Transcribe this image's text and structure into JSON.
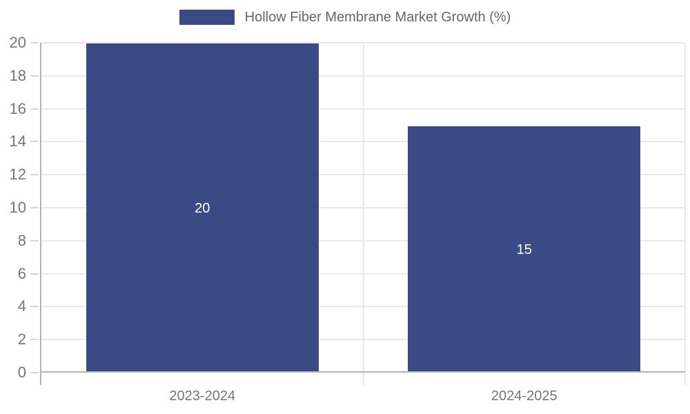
{
  "chart_data": {
    "type": "bar",
    "title": "",
    "legend": "Hollow Fiber Membrane Market Growth (%)",
    "legend_position": "top-center",
    "categories": [
      "2023-2024",
      "2024-2025"
    ],
    "series": [
      {
        "name": "Hollow Fiber Membrane Market Growth (%)",
        "values": [
          20,
          15
        ]
      }
    ],
    "bar_value_labels": [
      "20",
      "15"
    ],
    "ylim": [
      0,
      20
    ],
    "ytick_step": 2,
    "yticks": [
      0,
      2,
      4,
      6,
      8,
      10,
      12,
      14,
      16,
      18,
      20
    ],
    "grid": true,
    "colors": {
      "bar": "#3a4a85",
      "gridline": "#e9e9e9",
      "axis_line": "#b3b3b3",
      "tick_text": "#757575",
      "legend_text": "#666666",
      "bar_label_text": "#ffffff"
    }
  }
}
